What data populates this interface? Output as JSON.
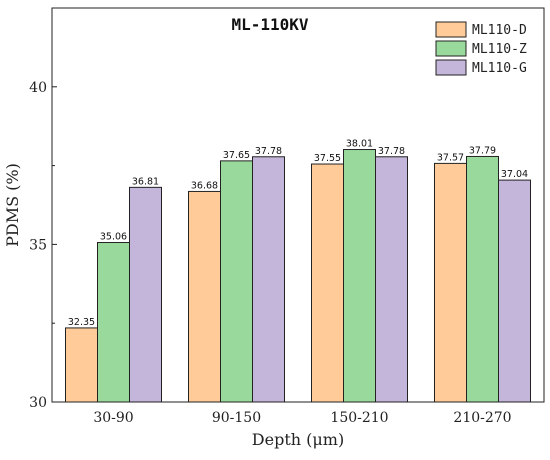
{
  "chart_data": {
    "type": "bar",
    "title": "ML-110KV",
    "xlabel": "Depth (μm)",
    "ylabel": "PDMS (%)",
    "ylim": [
      30,
      42.5
    ],
    "yticks": [
      "30",
      "35",
      "40"
    ],
    "categories": [
      "30-90",
      "90-150",
      "150-210",
      "210-270"
    ],
    "grid": false,
    "legend_position": "top-right",
    "series": [
      {
        "name": "ML110-D",
        "color": "#FFCC99",
        "values": [
          32.35,
          36.68,
          37.55,
          37.57
        ],
        "labels": [
          "32.35",
          "36.68",
          "37.55",
          "37.57"
        ]
      },
      {
        "name": "ML110-Z",
        "color": "#99D99B",
        "values": [
          35.06,
          37.65,
          38.01,
          37.79
        ],
        "labels": [
          "35.06",
          "37.65",
          "38.01",
          "37.79"
        ]
      },
      {
        "name": "ML110-G",
        "color": "#C4B5DA",
        "values": [
          36.81,
          37.78,
          37.78,
          37.04
        ],
        "labels": [
          "36.81",
          "37.78",
          "37.78",
          "37.04"
        ]
      }
    ]
  }
}
